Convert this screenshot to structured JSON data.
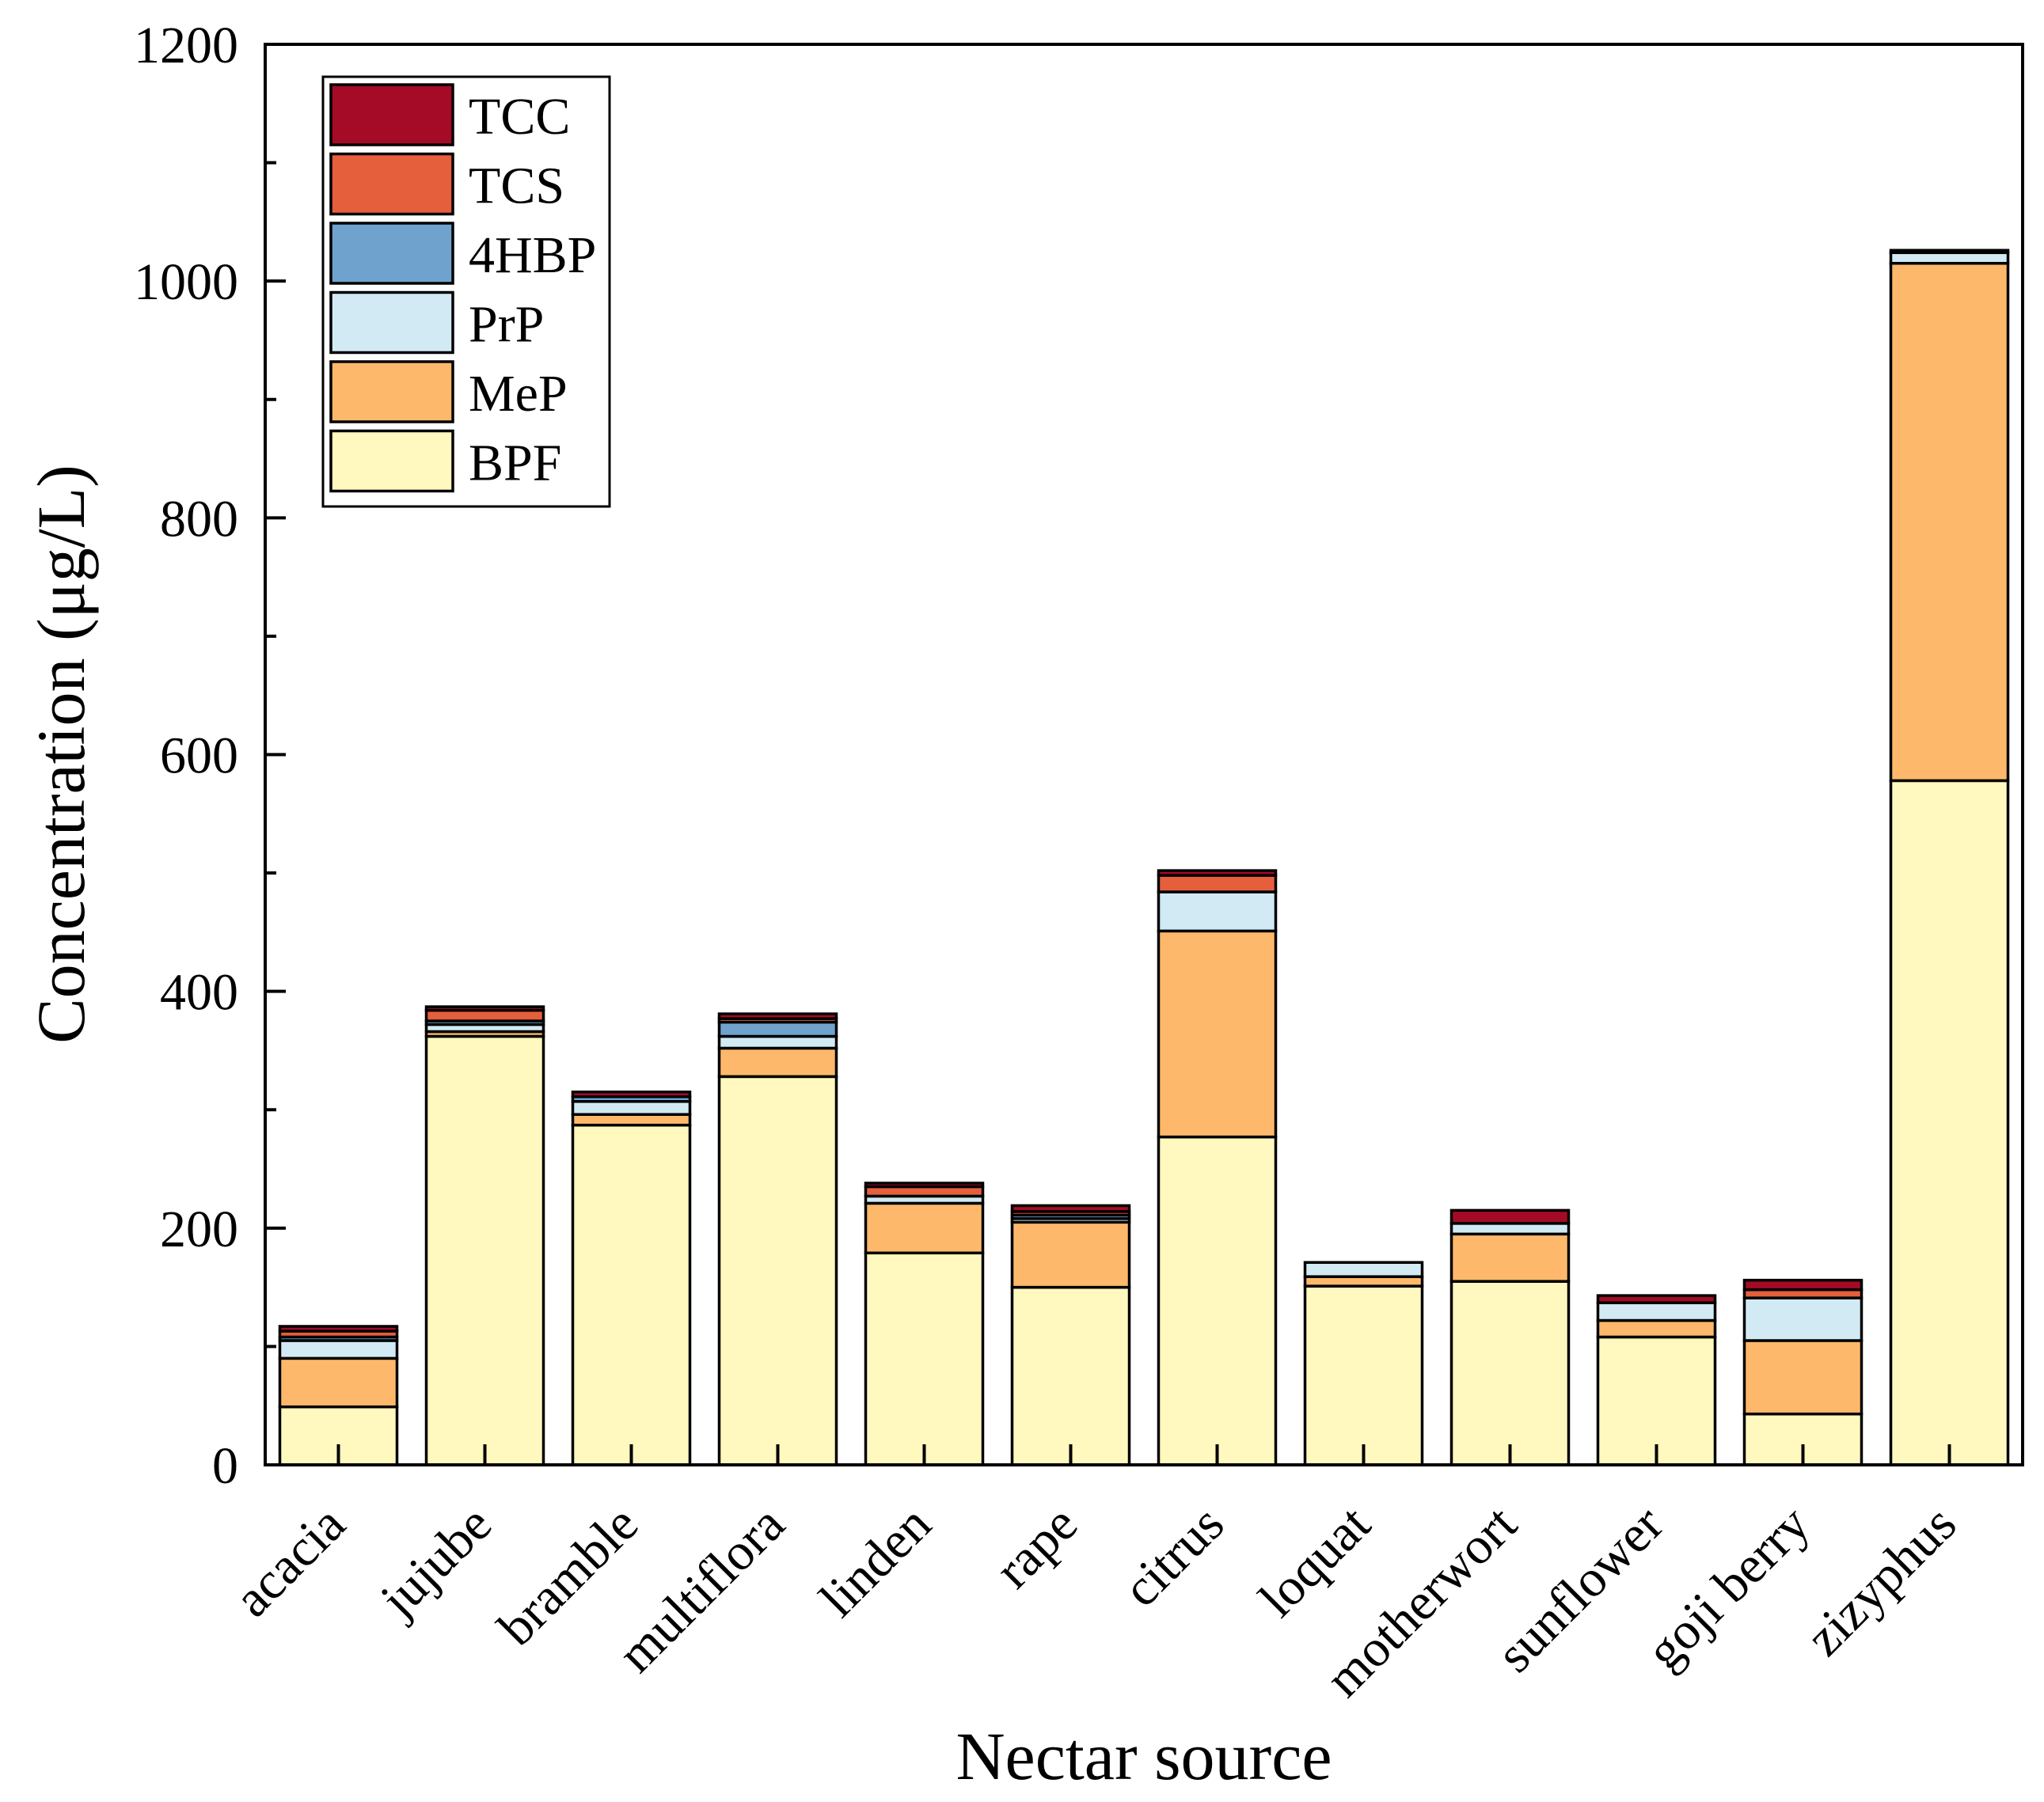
{
  "chart_data": {
    "type": "bar",
    "stacked": true,
    "title": "",
    "xlabel": "Nectar source",
    "ylabel": "Concentration (μg/L)",
    "ylim": [
      0,
      1200
    ],
    "yticks": [
      0,
      200,
      400,
      600,
      800,
      1000,
      1200
    ],
    "grid": false,
    "legend_position": "top-left",
    "categories": [
      "acacia",
      "jujube",
      "bramble",
      "multiflora",
      "linden",
      "rape",
      "citrus",
      "loquat",
      "motherwort",
      "sunflower",
      "goji berry",
      "zizyphus"
    ],
    "series": [
      {
        "name": "BPF",
        "color": "#fff8bf",
        "values": [
          49,
          362,
          287,
          328,
          179,
          150,
          277,
          151,
          155,
          108,
          43,
          578
        ]
      },
      {
        "name": "MeP",
        "color": "#fdb86b",
        "values": [
          41,
          4,
          9,
          24,
          42,
          55,
          174,
          8,
          40,
          14,
          62,
          437
        ]
      },
      {
        "name": "PrP",
        "color": "#d2eaf3",
        "values": [
          15,
          6,
          11,
          10,
          6,
          3,
          33,
          12,
          9,
          15,
          36,
          9
        ]
      },
      {
        "name": "4HBP",
        "color": "#6fa3cd",
        "values": [
          3,
          3,
          4,
          12,
          0,
          3,
          0,
          0,
          0,
          0,
          0,
          2
        ]
      },
      {
        "name": "TCS",
        "color": "#e55f3c",
        "values": [
          5,
          9,
          0,
          3,
          8,
          3,
          14,
          0,
          0,
          0,
          7,
          0
        ]
      },
      {
        "name": "TCC",
        "color": "#a50b26",
        "values": [
          4,
          3,
          4,
          4,
          3,
          5,
          4,
          0,
          11,
          6,
          8,
          0
        ]
      }
    ]
  }
}
